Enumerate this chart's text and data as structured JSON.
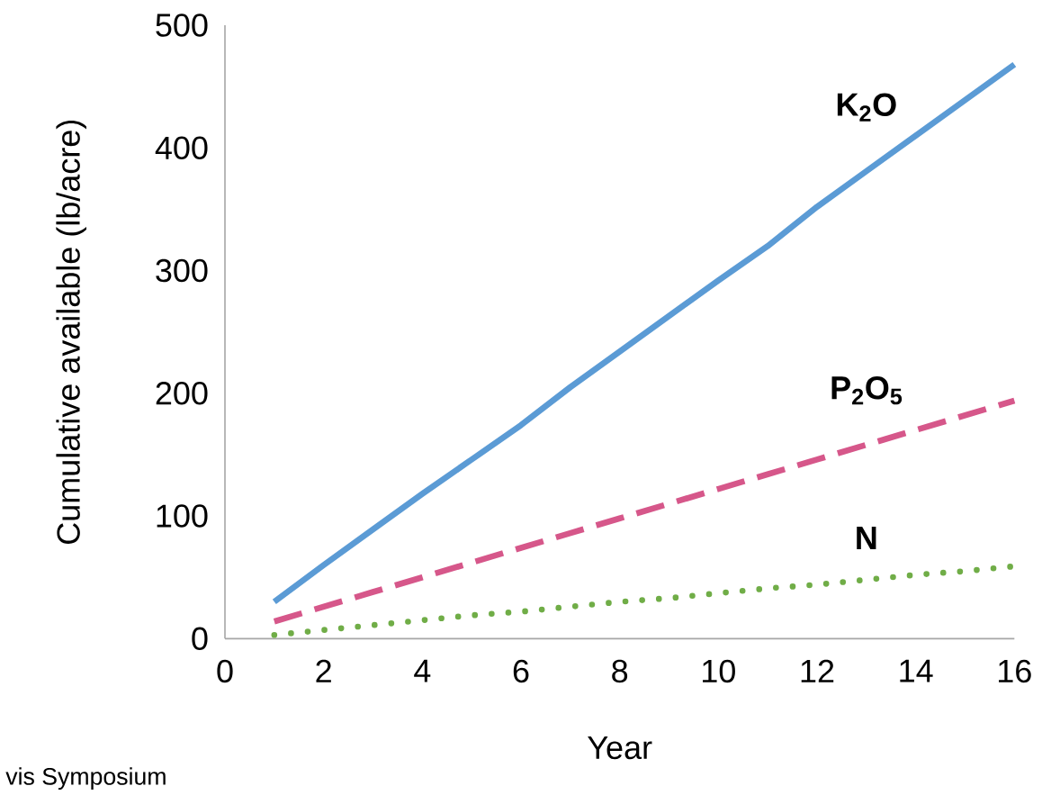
{
  "chart_data": {
    "type": "line",
    "xlabel": "Year",
    "ylabel": "Cumulative available (lb/acre)",
    "xlim": [
      0,
      16
    ],
    "ylim": [
      0,
      500
    ],
    "xticks": [
      0,
      2,
      4,
      6,
      8,
      10,
      12,
      14,
      16
    ],
    "yticks": [
      0,
      100,
      200,
      300,
      400,
      500
    ],
    "grid": false,
    "marker": "none",
    "annotations": [
      "vis Symposium"
    ],
    "series": [
      {
        "name": "K$_{2}$O",
        "color": "#5b9bd5",
        "line_style": "solid",
        "x": [
          1,
          2,
          3,
          4,
          5,
          6,
          7,
          8,
          9,
          10,
          11,
          12,
          13,
          14,
          15,
          16
        ],
        "values": [
          30,
          60,
          89,
          118,
          146,
          174,
          205,
          234,
          263,
          292,
          320,
          352,
          381,
          410,
          439,
          468
        ]
      },
      {
        "name": "P$_{2}$O$_{5}$",
        "color": "#d6578a",
        "line_style": "dashed",
        "x": [
          1,
          2,
          3,
          4,
          5,
          6,
          7,
          8,
          9,
          10,
          11,
          12,
          13,
          14,
          15,
          16
        ],
        "values": [
          14,
          26,
          38,
          50,
          62,
          74,
          86,
          98,
          110,
          122,
          134,
          146,
          158,
          170,
          182,
          194
        ]
      },
      {
        "name": "N",
        "color": "#70ad47",
        "line_style": "dotted",
        "x": [
          1,
          2,
          3,
          4,
          5,
          6,
          7,
          8,
          9,
          10,
          11,
          12,
          13,
          14,
          15,
          16
        ],
        "values": [
          3,
          7,
          11,
          15,
          19,
          22,
          26,
          30,
          33,
          37,
          41,
          44,
          48,
          52,
          55,
          59
        ]
      }
    ]
  }
}
